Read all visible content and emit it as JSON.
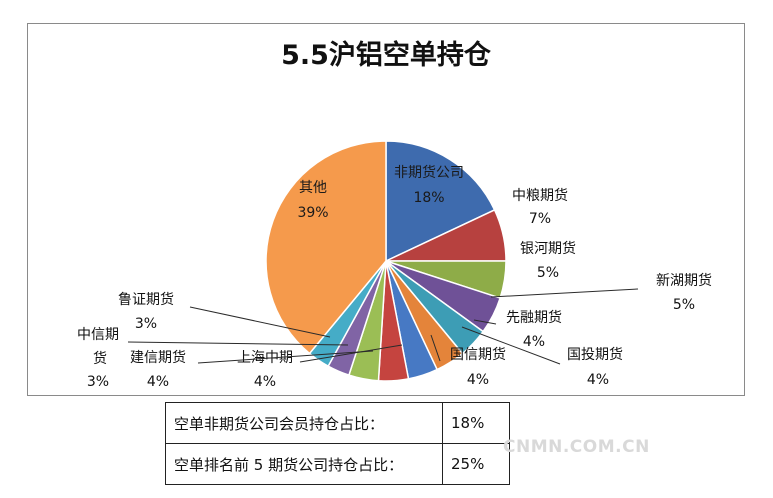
{
  "chart_data": {
    "type": "pie",
    "title": "5.5沪铝空单持仓",
    "slices": [
      {
        "name": "非期货公司",
        "value": 18,
        "label": "18%",
        "color": "#3E6BAE"
      },
      {
        "name": "中粮期货",
        "value": 7,
        "label": "7%",
        "color": "#B7413F"
      },
      {
        "name": "银河期货",
        "value": 5,
        "label": "5%",
        "color": "#8EAC48"
      },
      {
        "name": "新湖期货",
        "value": 5,
        "label": "5%",
        "color": "#6F5197"
      },
      {
        "name": "先融期货",
        "value": 4,
        "label": "4%",
        "color": "#3D9DB5"
      },
      {
        "name": "国投期货",
        "value": 4,
        "label": "4%",
        "color": "#E4843A"
      },
      {
        "name": "国信期货",
        "value": 4,
        "label": "4%",
        "color": "#4779C4"
      },
      {
        "name": "上海中期",
        "value": 4,
        "label": "4%",
        "color": "#C5443F"
      },
      {
        "name": "建信期货",
        "value": 4,
        "label": "4%",
        "color": "#9BBE55"
      },
      {
        "name": "中信期货",
        "value": 3,
        "label": "3%",
        "color": "#8064A5"
      },
      {
        "name": "鲁证期货",
        "value": 3,
        "label": "3%",
        "color": "#45ACC7"
      },
      {
        "name": "其他",
        "value": 39,
        "label": "39%",
        "color": "#F59A4C"
      }
    ]
  },
  "summary_table": [
    {
      "label": "空单非期货公司会员持仓占比：",
      "value": "18%"
    },
    {
      "label": "空单排名前 5 期货公司持仓占比：",
      "value": "25%"
    }
  ],
  "watermark": "CNMN.COM.CN"
}
